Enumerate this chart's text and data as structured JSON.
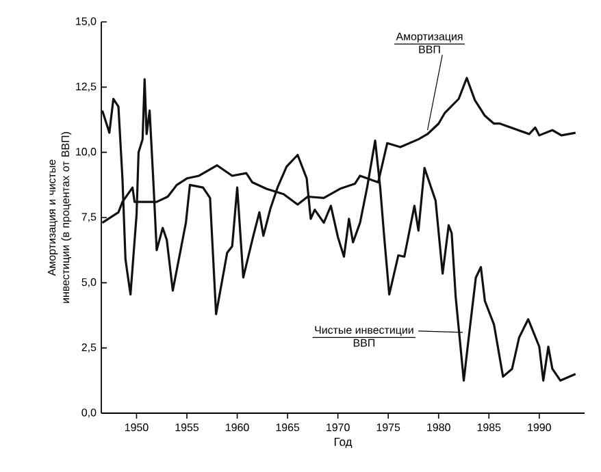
{
  "chart_data": {
    "type": "line",
    "xlabel": "Год",
    "ylabel": "Амортизация и чистые инвестиции (в процентах от ВВП)",
    "xlim": [
      1946.5,
      1994.5
    ],
    "xticks": [
      1950,
      1955,
      1960,
      1965,
      1970,
      1975,
      1980,
      1985,
      1990
    ],
    "ylim": [
      0,
      15
    ],
    "yticks": [
      {
        "value": 0,
        "label": "0,0"
      },
      {
        "value": 2.5,
        "label": "2,5"
      },
      {
        "value": 5,
        "label": "5,0"
      },
      {
        "value": 7.5,
        "label": "7,5"
      },
      {
        "value": 10,
        "label": "10,0"
      },
      {
        "value": 12.5,
        "label": "12,5"
      },
      {
        "value": 15,
        "label": "15,0"
      }
    ],
    "grid": false,
    "series": [
      {
        "color": "#111111",
        "x": [
          1946.6,
          1948.2,
          1948.6,
          1949.6,
          1949.8,
          1952,
          1953.1,
          1954,
          1955,
          1956.2,
          1958,
          1959.5,
          1960.9,
          1961.5,
          1962.9,
          1964.6,
          1966,
          1967,
          1968.6,
          1970.2,
          1971.7,
          1972.2,
          1974,
          1974.9,
          1976.2,
          1978,
          1978.9,
          1980,
          1980.6,
          1982,
          1982.8,
          1983.6,
          1984.6,
          1985.5,
          1986.1,
          1989,
          1989.6,
          1990,
          1991.3,
          1992.2,
          1993.6
        ],
        "values": [
          7.3,
          7.7,
          8.1,
          8.65,
          8.1,
          8.1,
          8.3,
          8.75,
          9.0,
          9.1,
          9.5,
          9.1,
          9.2,
          8.85,
          8.6,
          8.4,
          8.0,
          8.3,
          8.25,
          8.6,
          8.8,
          9.1,
          8.85,
          10.35,
          10.2,
          10.5,
          10.7,
          11.1,
          11.5,
          12.05,
          12.85,
          12.0,
          11.4,
          11.1,
          11.1,
          10.7,
          10.95,
          10.65,
          10.85,
          10.65,
          10.75
        ]
      },
      {
        "color": "#111111",
        "x": [
          1946.6,
          1947.3,
          1947.7,
          1948.2,
          1948.6,
          1948.9,
          1949.1,
          1949.4,
          1950.0,
          1950.2,
          1950.6,
          1950.8,
          1951.0,
          1951.3,
          1951.7,
          1952.0,
          1952.6,
          1953.0,
          1953.6,
          1954.9,
          1955.3,
          1956.6,
          1957.3,
          1957.9,
          1959.0,
          1959.5,
          1960.0,
          1960.6,
          1961.6,
          1962.2,
          1962.6,
          1963.3,
          1964.0,
          1964.9,
          1966.0,
          1966.9,
          1967.3,
          1967.7,
          1968.6,
          1969.3,
          1970.0,
          1970.6,
          1971.1,
          1971.5,
          1972.2,
          1972.9,
          1973.7,
          1974.2,
          1974.6,
          1975.1,
          1976.0,
          1976.6,
          1977.6,
          1978.0,
          1978.6,
          1979.7,
          1980.4,
          1981.0,
          1981.3,
          1981.7,
          1982.5,
          1983.1,
          1983.7,
          1984.2,
          1984.6,
          1985.5,
          1986.4,
          1987.3,
          1988.0,
          1988.9,
          1990.0,
          1990.4,
          1990.9,
          1991.3,
          1992.1,
          1993.6
        ],
        "values": [
          11.6,
          10.75,
          12.05,
          11.75,
          9.0,
          5.9,
          5.35,
          4.55,
          7.6,
          10.0,
          10.5,
          12.8,
          10.7,
          11.6,
          8.65,
          6.25,
          7.1,
          6.65,
          4.7,
          7.3,
          8.75,
          8.65,
          8.25,
          3.8,
          6.15,
          6.4,
          8.65,
          5.2,
          6.8,
          7.7,
          6.8,
          7.85,
          8.65,
          9.45,
          9.9,
          9.0,
          7.45,
          7.8,
          7.3,
          7.95,
          6.75,
          6.0,
          7.45,
          6.55,
          7.3,
          8.65,
          10.45,
          8.65,
          6.75,
          4.55,
          6.05,
          6.0,
          7.95,
          7.0,
          9.4,
          8.15,
          5.35,
          7.2,
          6.9,
          4.45,
          1.25,
          3.25,
          5.2,
          5.6,
          4.3,
          3.4,
          1.4,
          1.7,
          2.9,
          3.6,
          2.55,
          1.25,
          2.55,
          1.7,
          1.25,
          1.5
        ]
      }
    ],
    "annotations": [
      {
        "text": "Амортизация",
        "x": 1978.9,
        "y": 10.85
      },
      "ВВП",
      {
        "text": "Чистые инвестиции",
        "x": 1982.4,
        "y": 3.1
      },
      "ВВП"
    ]
  }
}
